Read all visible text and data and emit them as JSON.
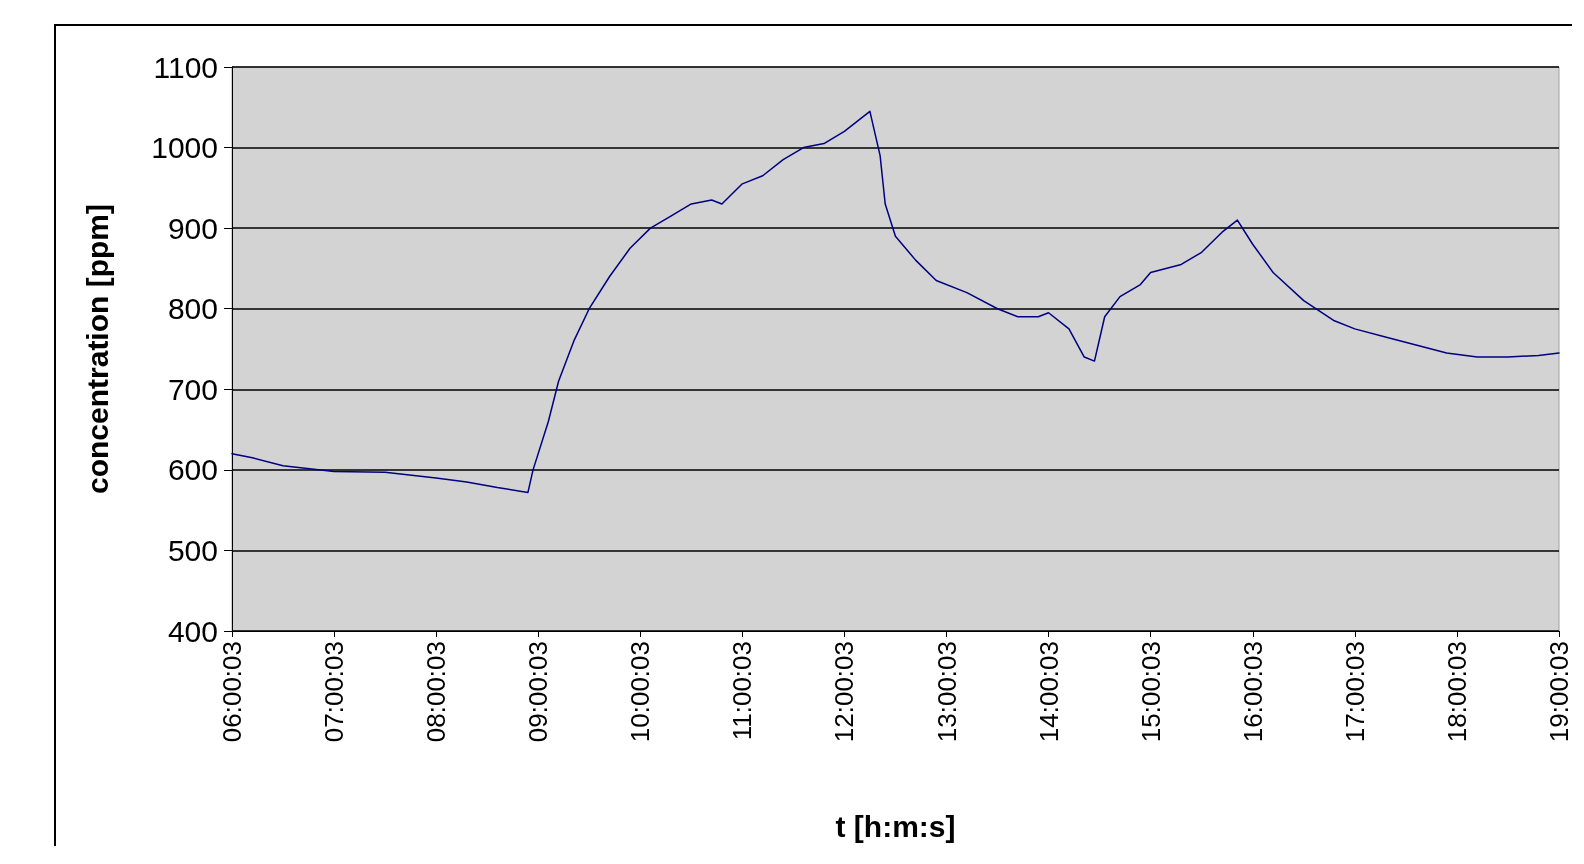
{
  "chart_data": {
    "type": "line",
    "xlabel": "t [h:m:s]",
    "ylabel": "concentration [ppm]",
    "xlim": [
      6.0008,
      19.0008
    ],
    "xticks": [
      {
        "value": 6.0008,
        "label": "06:00:03"
      },
      {
        "value": 7.0008,
        "label": "07:00:03"
      },
      {
        "value": 8.0008,
        "label": "08:00:03"
      },
      {
        "value": 9.0008,
        "label": "09:00:03"
      },
      {
        "value": 10.0008,
        "label": "10:00:03"
      },
      {
        "value": 11.0008,
        "label": "11:00:03"
      },
      {
        "value": 12.0008,
        "label": "12:00:03"
      },
      {
        "value": 13.0008,
        "label": "13:00:03"
      },
      {
        "value": 14.0008,
        "label": "14:00:03"
      },
      {
        "value": 15.0008,
        "label": "15:00:03"
      },
      {
        "value": 16.0008,
        "label": "16:00:03"
      },
      {
        "value": 17.0008,
        "label": "17:00:03"
      },
      {
        "value": 18.0008,
        "label": "18:00:03"
      },
      {
        "value": 19.0008,
        "label": "19:00:03"
      }
    ],
    "ylim": [
      400,
      1100
    ],
    "yticks": [
      400,
      500,
      600,
      700,
      800,
      900,
      1000,
      1100
    ],
    "grid": "y",
    "marker": "none",
    "line_style": "solid",
    "series": [
      {
        "color": "#000080",
        "x": [
          6.0008,
          6.2,
          6.5,
          7.0,
          7.5,
          8.0,
          8.3,
          8.6,
          8.9,
          8.95,
          9.1,
          9.2,
          9.35,
          9.5,
          9.7,
          9.9,
          10.1,
          10.3,
          10.5,
          10.7,
          10.8,
          11.0,
          11.2,
          11.4,
          11.6,
          11.8,
          12.0,
          12.2,
          12.25,
          12.35,
          12.4,
          12.5,
          12.7,
          12.9,
          13.2,
          13.5,
          13.7,
          13.9,
          14.0,
          14.2,
          14.35,
          14.45,
          14.55,
          14.7,
          14.9,
          15.0,
          15.3,
          15.5,
          15.7,
          15.85,
          16.0,
          16.2,
          16.5,
          16.8,
          17.0,
          17.3,
          17.6,
          17.9,
          18.2,
          18.5,
          18.8,
          19.0008
        ],
        "values": [
          620,
          615,
          605,
          598,
          597,
          590,
          585,
          578,
          572,
          600,
          660,
          710,
          760,
          800,
          840,
          875,
          900,
          915,
          930,
          935,
          930,
          955,
          965,
          985,
          1000,
          1005,
          1020,
          1040,
          1045,
          990,
          930,
          890,
          860,
          835,
          820,
          800,
          790,
          790,
          795,
          775,
          740,
          735,
          790,
          815,
          830,
          845,
          855,
          870,
          895,
          910,
          880,
          845,
          810,
          785,
          775,
          765,
          755,
          745,
          740,
          740,
          742,
          745
        ]
      }
    ]
  }
}
